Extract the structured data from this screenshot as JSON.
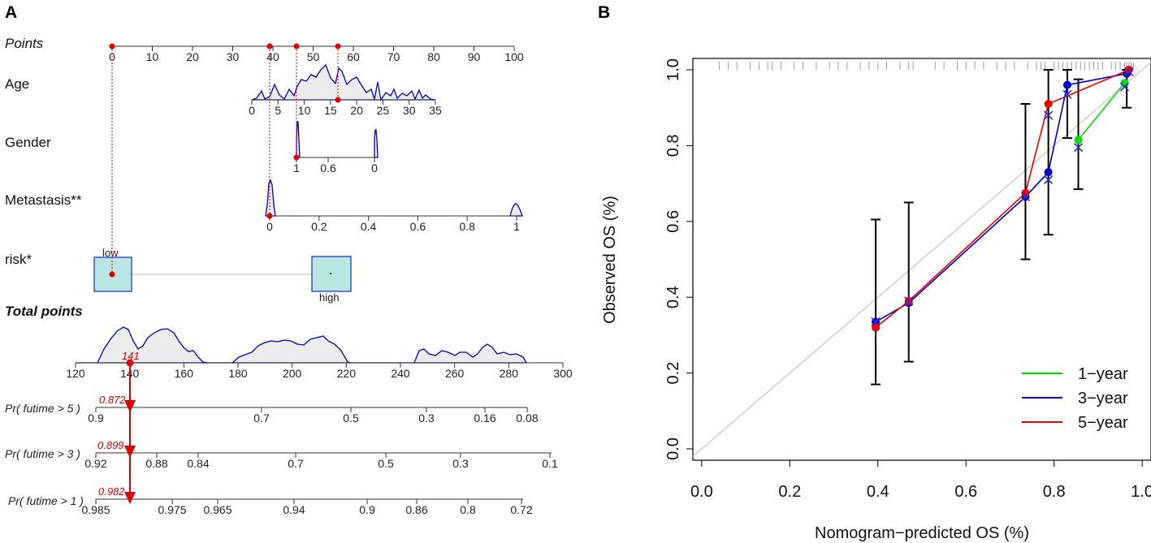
{
  "panel_a": {
    "label": "A",
    "points_label": "Points",
    "age_label": "Age",
    "gender_label": "Gender",
    "metastasis_label": "Metastasis**",
    "risk_label": "risk*",
    "total_label": "Total points",
    "risk_low": "low",
    "risk_high": "high",
    "total_value": "141",
    "pr5_label": "Pr( futime > 5 )",
    "pr3_label": "Pr( futime > 3 )",
    "pr1_label": "Pr( futime > 1 )",
    "pr5_value": "0.872",
    "pr3_value": "0.899",
    "pr1_value": "0.982"
  },
  "chart_data": [
    {
      "type": "nomogram",
      "title": "",
      "points_ticks": [
        "0",
        "10",
        "20",
        "30",
        "40",
        "50",
        "60",
        "70",
        "80",
        "90",
        "100"
      ],
      "points_range": [
        0,
        100
      ],
      "age_ticks": [
        "0",
        "5",
        "10",
        "15",
        "20",
        "25",
        "30",
        "35"
      ],
      "age_range": [
        0,
        35
      ],
      "gender_ticks": [
        "1",
        "0.6",
        "0"
      ],
      "metastasis_ticks": [
        "0",
        "0.2",
        "0.4",
        "0.6",
        "0.8",
        "1"
      ],
      "risk_levels": [
        "low",
        "high"
      ],
      "total_ticks": [
        "120",
        "140",
        "160",
        "180",
        "200",
        "220",
        "240",
        "260",
        "280",
        "300"
      ],
      "total_range": [
        120,
        300
      ],
      "pr5_ticks": [
        "0.9",
        "0.7",
        "0.5",
        "0.3",
        "0.16",
        "0.08"
      ],
      "pr3_ticks": [
        "0.92",
        "0.88",
        "0.84",
        "0.7",
        "0.5",
        "0.3",
        "0.1"
      ],
      "pr1_ticks": [
        "0.985",
        "0.975",
        "0.965",
        "0.94",
        "0.9",
        "0.86",
        "0.8",
        "0.72"
      ],
      "selected_points": [
        0,
        39,
        45,
        56
      ],
      "total_points": 141,
      "survival": {
        "5-year": 0.872,
        "3-year": 0.899,
        "1-year": 0.982
      }
    },
    {
      "type": "line",
      "title": "B",
      "xlabel": "Nomogram−predicted OS (%)",
      "ylabel": "Observed OS (%)",
      "xlim": [
        -0.02,
        1.02
      ],
      "ylim": [
        -0.03,
        1.03
      ],
      "x_ticks": [
        "0.0",
        "0.2",
        "0.4",
        "0.6",
        "0.8",
        "1.0"
      ],
      "y_ticks": [
        "0.0",
        "0.2",
        "0.4",
        "0.6",
        "0.8",
        "1.0"
      ],
      "legend_position": "bottom-right",
      "series": [
        {
          "name": "1−year",
          "color": "#00dd00",
          "x": [
            0.855,
            0.96
          ],
          "y": [
            0.815,
            0.965
          ]
        },
        {
          "name": "3−year",
          "color": "#0000cc",
          "x": [
            0.395,
            0.47,
            0.735,
            0.787,
            0.83,
            0.965
          ],
          "y": [
            0.335,
            0.385,
            0.665,
            0.73,
            0.96,
            0.99
          ]
        },
        {
          "name": "5−year",
          "color": "#ee0000",
          "x": [
            0.395,
            0.47,
            0.735,
            0.787,
            0.97
          ],
          "y": [
            0.32,
            0.39,
            0.675,
            0.91,
            1.0
          ]
        }
      ],
      "crosses": [
        {
          "x": 0.395,
          "y": 0.335
        },
        {
          "x": 0.47,
          "y": 0.39
        },
        {
          "x": 0.735,
          "y": 0.665
        },
        {
          "x": 0.787,
          "y": 0.71
        },
        {
          "x": 0.787,
          "y": 0.88
        },
        {
          "x": 0.83,
          "y": 0.935
        },
        {
          "x": 0.855,
          "y": 0.795
        },
        {
          "x": 0.96,
          "y": 0.955
        },
        {
          "x": 0.97,
          "y": 0.995
        }
      ],
      "error_bars": [
        {
          "x": 0.395,
          "low": 0.17,
          "high": 0.605
        },
        {
          "x": 0.47,
          "low": 0.23,
          "high": 0.65
        },
        {
          "x": 0.735,
          "low": 0.5,
          "high": 0.91
        },
        {
          "x": 0.787,
          "low": 0.565,
          "high": 1.0
        },
        {
          "x": 0.83,
          "low": 0.82,
          "high": 1.0
        },
        {
          "x": 0.855,
          "low": 0.685,
          "high": 0.975
        },
        {
          "x": 0.965,
          "low": 0.9,
          "high": 1.0
        }
      ],
      "rug": [
        0.04,
        0.06,
        0.08,
        0.11,
        0.13,
        0.15,
        0.16,
        0.18,
        0.21,
        0.23,
        0.26,
        0.29,
        0.31,
        0.33,
        0.36,
        0.38,
        0.4,
        0.42,
        0.45,
        0.47,
        0.48,
        0.53,
        0.55,
        0.58,
        0.6,
        0.62,
        0.64,
        0.67,
        0.69,
        0.71,
        0.74,
        0.76,
        0.77,
        0.78,
        0.8,
        0.81,
        0.82,
        0.83,
        0.84,
        0.85,
        0.86,
        0.87,
        0.88,
        0.89,
        0.9,
        0.91,
        0.93,
        0.94,
        0.95,
        0.96,
        0.965,
        0.97,
        0.975,
        0.98
      ]
    }
  ],
  "colors": {
    "red": "#e00000",
    "blue": "#0000cc",
    "green": "#00dd00",
    "density_fill": "#ececec",
    "risk_box": "#b8e6e1"
  }
}
